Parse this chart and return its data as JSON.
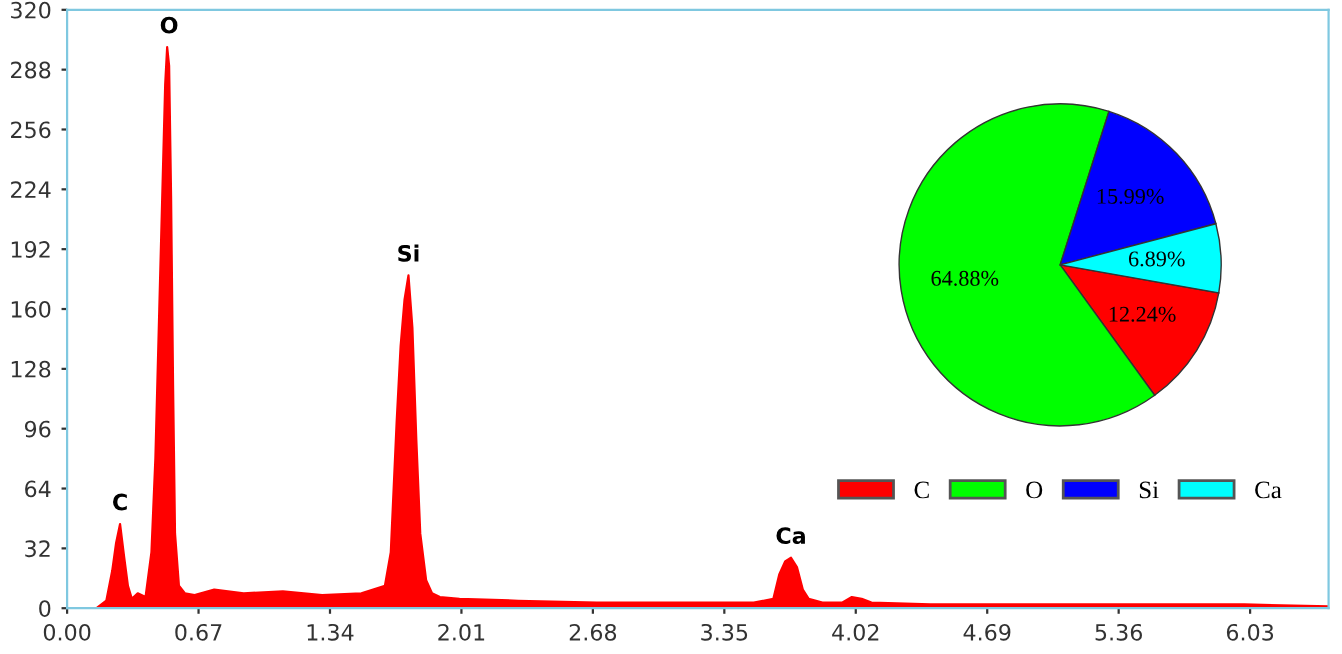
{
  "chart_data": [
    {
      "type": "area",
      "xlim": [
        0,
        6.43
      ],
      "ylim": [
        0,
        320
      ],
      "xticks": [
        {
          "value": 0,
          "label": "0.00"
        },
        0.67,
        1.34,
        2.01,
        2.68,
        3.35,
        4.02,
        4.69,
        5.36,
        6.03
      ],
      "yticks": [
        0,
        32,
        64,
        96,
        128,
        160,
        192,
        224,
        256,
        288,
        320
      ],
      "grid": false,
      "annotations": [
        {
          "text": "C",
          "x": 0.27,
          "y": 50
        },
        {
          "text": "O",
          "x": 0.52,
          "y": 305
        },
        {
          "text": "Si",
          "x": 1.74,
          "y": 183
        },
        {
          "text": "Ca",
          "x": 3.69,
          "y": 32
        }
      ],
      "series": [
        {
          "color": "#ff0000",
          "x": [
            0.0,
            0.15,
            0.2,
            0.23,
            0.25,
            0.27,
            0.29,
            0.31,
            0.33,
            0.36,
            0.4,
            0.43,
            0.45,
            0.47,
            0.49,
            0.5,
            0.51,
            0.52,
            0.53,
            0.54,
            0.55,
            0.57,
            0.6,
            0.65,
            0.75,
            0.9,
            1.1,
            1.3,
            1.5,
            1.62,
            1.65,
            1.68,
            1.7,
            1.72,
            1.74,
            1.76,
            1.78,
            1.8,
            1.83,
            1.86,
            1.9,
            2.0,
            2.3,
            2.7,
            3.1,
            3.5,
            3.6,
            3.63,
            3.66,
            3.69,
            3.72,
            3.75,
            3.78,
            3.85,
            3.95,
            4.0,
            4.05,
            4.1,
            4.4,
            5.0,
            5.6,
            6.0,
            6.43
          ],
          "values": [
            0,
            0,
            4,
            20,
            35,
            45,
            28,
            12,
            5,
            8,
            6,
            30,
            80,
            160,
            240,
            280,
            300,
            290,
            220,
            120,
            40,
            12,
            8,
            7,
            10,
            8,
            9,
            7,
            8,
            12,
            30,
            100,
            140,
            165,
            178,
            150,
            90,
            40,
            15,
            8,
            6,
            5,
            4,
            3,
            3,
            3,
            5,
            18,
            25,
            27,
            22,
            10,
            5,
            3,
            3,
            6,
            5,
            3,
            2,
            2,
            2,
            2,
            1
          ]
        }
      ]
    },
    {
      "type": "pie",
      "categories": [
        "C",
        "O",
        "Si",
        "Ca"
      ],
      "values": [
        12.24,
        64.88,
        15.99,
        6.89
      ],
      "colors": [
        "#ff0000",
        "#00ff00",
        "#0000ff",
        "#00ffff"
      ],
      "value_labels": [
        "12.24%",
        "64.88%",
        "15.99%",
        "6.89%"
      ],
      "legend": "bottom"
    }
  ]
}
